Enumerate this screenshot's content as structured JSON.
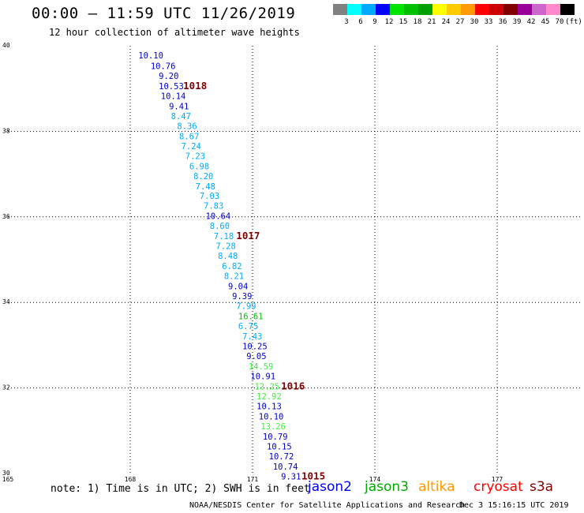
{
  "header": {
    "title": "00:00 – 11:59 UTC 11/26/2019",
    "subtitle": "12 hour collection of altimeter wave heights"
  },
  "legend": {
    "colors": [
      "#808080",
      "#00ffff",
      "#00aaff",
      "#0000ff",
      "#00e400",
      "#00c000",
      "#00a000",
      "#ffff00",
      "#ffcc00",
      "#ff9900",
      "#ff0000",
      "#cc0000",
      "#800000",
      "#990099",
      "#cc66cc",
      "#ff88cc",
      "#000000"
    ],
    "labels": [
      "3",
      "6",
      "9",
      "12",
      "15",
      "18",
      "21",
      "24",
      "27",
      "30",
      "33",
      "36",
      "39",
      "42",
      "45",
      "70",
      "(ft)"
    ]
  },
  "chart_data": {
    "type": "scatter",
    "xlim": [
      165,
      180
    ],
    "ylim": [
      30,
      40
    ],
    "x_ticks": [
      "165",
      "168",
      "171",
      "174",
      "177"
    ],
    "y_ticks": [
      "40",
      "38",
      "36",
      "34",
      "32",
      "30"
    ],
    "grid": true,
    "points": [
      {
        "x": 168.2,
        "y": 39.78,
        "label": "10.10",
        "color": "#0000cc"
      },
      {
        "x": 168.5,
        "y": 39.53,
        "label": "10.76",
        "color": "#0000cc"
      },
      {
        "x": 168.7,
        "y": 39.3,
        "label": "9.20",
        "color": "#0000cc"
      },
      {
        "x": 168.7,
        "y": 39.06,
        "label": "10.53",
        "color": "#0000cc"
      },
      {
        "x": 168.75,
        "y": 38.83,
        "label": "10.14",
        "color": "#0000cc"
      },
      {
        "x": 168.95,
        "y": 38.59,
        "label": "9.41",
        "color": "#0000cc"
      },
      {
        "x": 169.0,
        "y": 38.36,
        "label": "8.47",
        "color": "#00aaff"
      },
      {
        "x": 169.15,
        "y": 38.13,
        "label": "8.36",
        "color": "#00aaff"
      },
      {
        "x": 169.2,
        "y": 37.89,
        "label": "8.67",
        "color": "#00aaff"
      },
      {
        "x": 169.25,
        "y": 37.66,
        "label": "7.24",
        "color": "#00aaff"
      },
      {
        "x": 169.35,
        "y": 37.43,
        "label": "7.23",
        "color": "#00aaff"
      },
      {
        "x": 169.45,
        "y": 37.19,
        "label": "6.98",
        "color": "#00aaff"
      },
      {
        "x": 169.55,
        "y": 36.96,
        "label": "8.20",
        "color": "#00aaff"
      },
      {
        "x": 169.6,
        "y": 36.72,
        "label": "7.48",
        "color": "#00aaff"
      },
      {
        "x": 169.7,
        "y": 36.49,
        "label": "7.03",
        "color": "#00aaff"
      },
      {
        "x": 169.8,
        "y": 36.26,
        "label": "7.83",
        "color": "#00aaff"
      },
      {
        "x": 169.85,
        "y": 36.02,
        "label": "10.64",
        "color": "#0000cc"
      },
      {
        "x": 169.95,
        "y": 35.79,
        "label": "8.60",
        "color": "#00aaff"
      },
      {
        "x": 170.05,
        "y": 35.55,
        "label": "7.18",
        "color": "#00aaff"
      },
      {
        "x": 170.1,
        "y": 35.32,
        "label": "7.28",
        "color": "#00aaff"
      },
      {
        "x": 170.15,
        "y": 35.09,
        "label": "8.48",
        "color": "#00aaff"
      },
      {
        "x": 170.25,
        "y": 34.85,
        "label": "6.82",
        "color": "#00aaff"
      },
      {
        "x": 170.3,
        "y": 34.62,
        "label": "8.21",
        "color": "#00aaff"
      },
      {
        "x": 170.4,
        "y": 34.38,
        "label": "9.04",
        "color": "#0000cc"
      },
      {
        "x": 170.5,
        "y": 34.15,
        "label": "9.39",
        "color": "#0000cc"
      },
      {
        "x": 170.6,
        "y": 33.92,
        "label": "7.99",
        "color": "#00aaff"
      },
      {
        "x": 170.65,
        "y": 33.68,
        "label": "16.61",
        "color": "#00c000"
      },
      {
        "x": 170.65,
        "y": 33.45,
        "label": "6.75",
        "color": "#00aaff"
      },
      {
        "x": 170.75,
        "y": 33.21,
        "label": "7.43",
        "color": "#00aaff"
      },
      {
        "x": 170.75,
        "y": 32.98,
        "label": "10.25",
        "color": "#0000cc"
      },
      {
        "x": 170.85,
        "y": 32.75,
        "label": "9.05",
        "color": "#0000cc"
      },
      {
        "x": 170.9,
        "y": 32.51,
        "label": "14.59",
        "color": "#44ee44"
      },
      {
        "x": 170.95,
        "y": 32.28,
        "label": "10.91",
        "color": "#0000cc"
      },
      {
        "x": 171.05,
        "y": 32.04,
        "label": "12.25",
        "color": "#44ee44"
      },
      {
        "x": 171.1,
        "y": 31.81,
        "label": "12.92",
        "color": "#44ee44"
      },
      {
        "x": 171.1,
        "y": 31.58,
        "label": "10.13",
        "color": "#0000cc"
      },
      {
        "x": 171.15,
        "y": 31.34,
        "label": "10.10",
        "color": "#0000cc"
      },
      {
        "x": 171.2,
        "y": 31.11,
        "label": "13.26",
        "color": "#44ee44"
      },
      {
        "x": 171.25,
        "y": 30.87,
        "label": "10.79",
        "color": "#0000cc"
      },
      {
        "x": 171.35,
        "y": 30.64,
        "label": "10.15",
        "color": "#0000cc"
      },
      {
        "x": 171.4,
        "y": 30.41,
        "label": "10.72",
        "color": "#0000cc"
      },
      {
        "x": 171.5,
        "y": 30.17,
        "label": "10.74",
        "color": "#0000cc"
      },
      {
        "x": 171.7,
        "y": 29.94,
        "label": "9.31",
        "color": "#0000cc"
      }
    ],
    "annotations": [
      {
        "x": 169.3,
        "y": 39.06,
        "text": "1018",
        "color": "#800000"
      },
      {
        "x": 170.6,
        "y": 35.55,
        "text": "1017",
        "color": "#800000"
      },
      {
        "x": 171.7,
        "y": 32.04,
        "text": "1016",
        "color": "#800000"
      },
      {
        "x": 172.2,
        "y": 29.94,
        "text": "1015",
        "color": "#800000"
      }
    ]
  },
  "footer": {
    "note": "note: 1) Time is in UTC; 2) SWH is in feet",
    "satellites": [
      {
        "name": "jason2",
        "color": "#0000ff"
      },
      {
        "name": "jason3",
        "color": "#00aa00"
      },
      {
        "name": "altika",
        "color": "#ff9900"
      },
      {
        "name": "cryosat",
        "color": "#ff0000"
      },
      {
        "name": "s3a",
        "color": "#800000"
      }
    ],
    "credit": "NOAA/NESDIS Center for Satellite Applications and Research",
    "timestamp": "Dec  3 15:16:15 UTC 2019"
  }
}
